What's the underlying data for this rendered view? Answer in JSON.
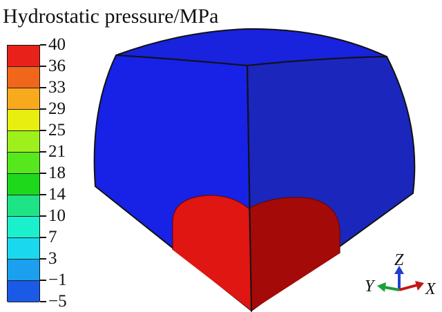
{
  "figure": {
    "title": "Hydrostatic pressure/MPa"
  },
  "legend": {
    "ticks": [
      "40",
      "36",
      "33",
      "29",
      "25",
      "21",
      "18",
      "14",
      "10",
      "7",
      "3",
      "−1",
      "−5"
    ],
    "band_colors": [
      "#e8221a",
      "#f0661a",
      "#f8aa1c",
      "#e8ee10",
      "#9ef01c",
      "#56e81c",
      "#1ed81c",
      "#1ee486",
      "#1af0cc",
      "#1ad8ee",
      "#1aa0ee",
      "#1a5ae6"
    ]
  },
  "model": {
    "colors": {
      "left_face": "#1722e6",
      "right_face": "#1a26bc",
      "top_face": "#1922dc",
      "left_high_pressure": "#e01612",
      "right_high_pressure": "#a40a08"
    }
  },
  "triad": {
    "z_label": "Z",
    "y_label": "Y",
    "x_label": "X",
    "z_color": "#1f3fd0",
    "y_color": "#19a03a",
    "x_color": "#c01818"
  }
}
